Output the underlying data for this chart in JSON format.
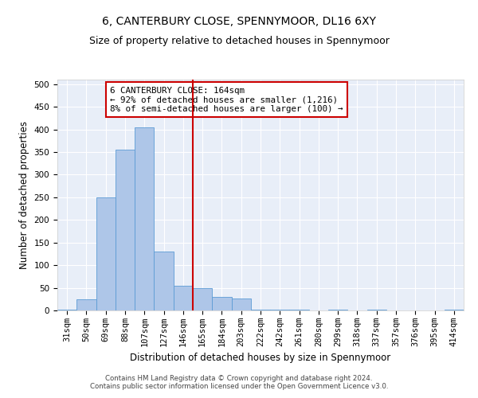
{
  "title": "6, CANTERBURY CLOSE, SPENNYMOOR, DL16 6XY",
  "subtitle": "Size of property relative to detached houses in Spennymoor",
  "xlabel": "Distribution of detached houses by size in Spennymoor",
  "ylabel": "Number of detached properties",
  "categories": [
    "31sqm",
    "50sqm",
    "69sqm",
    "88sqm",
    "107sqm",
    "127sqm",
    "146sqm",
    "165sqm",
    "184sqm",
    "203sqm",
    "222sqm",
    "242sqm",
    "261sqm",
    "280sqm",
    "299sqm",
    "318sqm",
    "337sqm",
    "357sqm",
    "376sqm",
    "395sqm",
    "414sqm"
  ],
  "values": [
    2,
    25,
    250,
    355,
    405,
    130,
    55,
    50,
    30,
    27,
    2,
    1,
    2,
    0,
    2,
    0,
    1,
    0,
    0,
    0,
    1
  ],
  "bar_color": "#aec6e8",
  "bar_edge_color": "#5b9bd5",
  "vline_color": "#cc0000",
  "annotation_text": "6 CANTERBURY CLOSE: 164sqm\n← 92% of detached houses are smaller (1,216)\n8% of semi-detached houses are larger (100) →",
  "annotation_box_color": "#ffffff",
  "annotation_box_edge": "#cc0000",
  "background_color": "#e8eef8",
  "grid_color": "#ffffff",
  "footer": "Contains HM Land Registry data © Crown copyright and database right 2024.\nContains public sector information licensed under the Open Government Licence v3.0.",
  "ylim": [
    0,
    510
  ],
  "title_fontsize": 10,
  "subtitle_fontsize": 9,
  "xlabel_fontsize": 8.5,
  "ylabel_fontsize": 8.5,
  "tick_fontsize": 7.5,
  "annotation_fontsize": 7.8,
  "footer_fontsize": 6.2
}
